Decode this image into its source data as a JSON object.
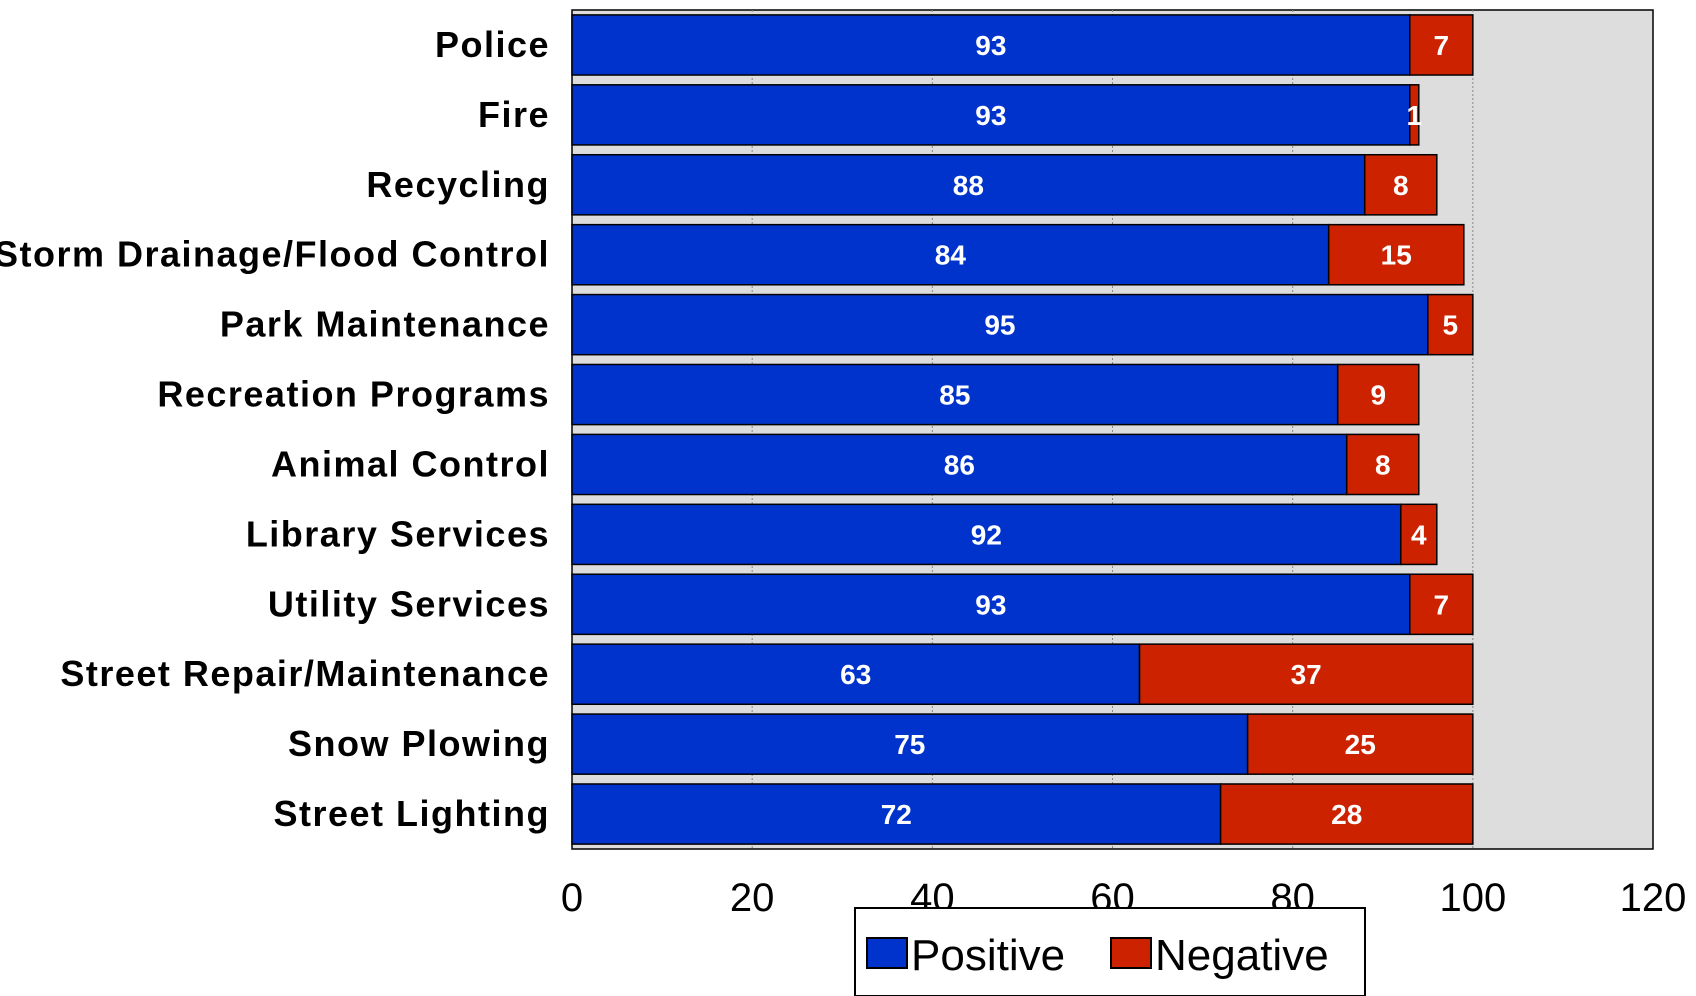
{
  "chart_data": {
    "type": "bar",
    "orientation": "horizontal",
    "stacked": true,
    "categories": [
      "Police",
      "Fire",
      "Recycling",
      "Storm Drainage/Flood Control",
      "Park Maintenance",
      "Recreation Programs",
      "Animal Control",
      "Library Services",
      "Utility Services",
      "Street Repair/Maintenance",
      "Snow Plowing",
      "Street Lighting"
    ],
    "series": [
      {
        "name": "Positive",
        "color": "#0033cc",
        "values": [
          93,
          93,
          88,
          84,
          95,
          85,
          86,
          92,
          93,
          63,
          75,
          72
        ]
      },
      {
        "name": "Negative",
        "color": "#cc2200",
        "values": [
          7,
          1,
          8,
          15,
          5,
          9,
          8,
          4,
          7,
          37,
          25,
          28
        ]
      }
    ],
    "xlim": [
      0,
      120
    ],
    "xticks": [
      0,
      20,
      40,
      60,
      80,
      100,
      120
    ],
    "grid": true,
    "plot_background": "#dddddd",
    "legend_position": "bottom"
  }
}
